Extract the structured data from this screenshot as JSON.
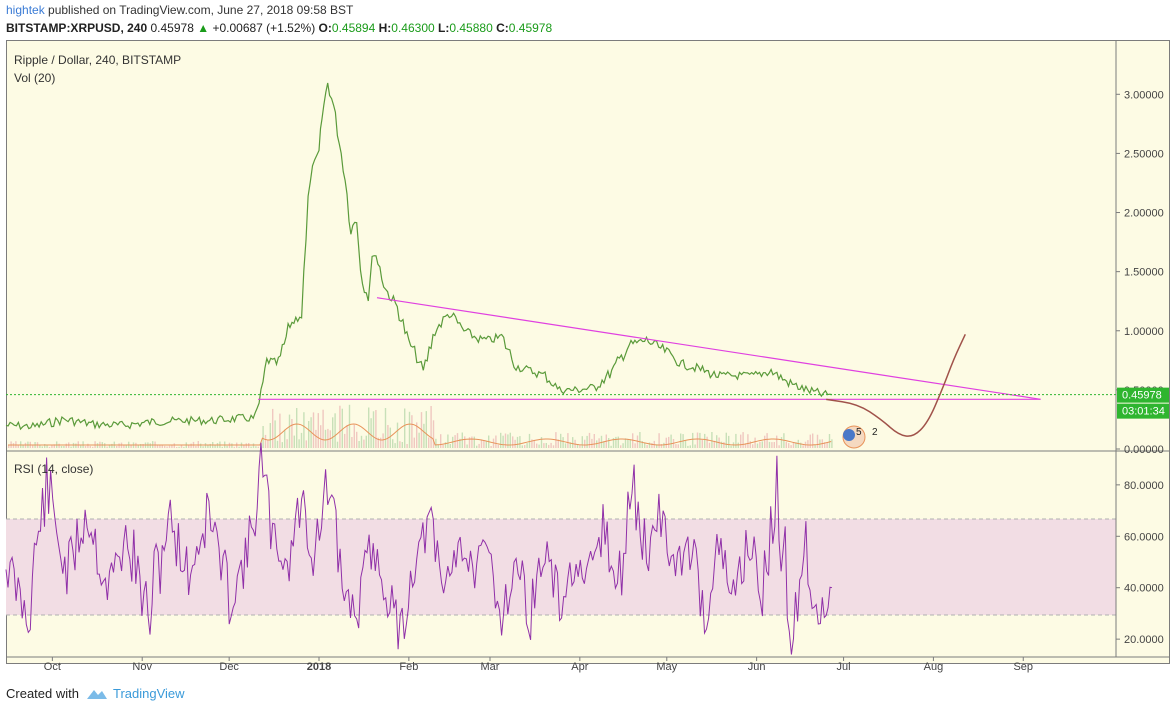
{
  "header": {
    "user": "hightek",
    "published": " published on TradingView.com, June 27, 2018 09:58 BST",
    "symbol": "BITSTAMP:XRPUSD, 240",
    "last": "0.45978",
    "change": "+0.00687 (+1.52%)",
    "o_label": "O:",
    "o": "0.45894",
    "h_label": "H:",
    "h": "0.46300",
    "l_label": "L:",
    "l": "0.45880",
    "c_label": "C:",
    "c": "0.45978"
  },
  "price_pane": {
    "title": "Ripple / Dollar, 240, BITSTAMP",
    "vol_label": "Vol (20)",
    "last_price_badge": "0.45978",
    "countdown_badge": "03:01:34",
    "event_count_1": "5",
    "event_count_2": "2"
  },
  "rsi_pane": {
    "title": "RSI (14, close)"
  },
  "footer": {
    "created_with": "Created with",
    "brand": "TradingView"
  },
  "colors": {
    "background": "#fdfbe4",
    "price_line": "#5a9a3a",
    "trendline": "#e040e0",
    "projection": "#a0524a",
    "rsi_line": "#9030a8",
    "rsi_band": "#f2dde4",
    "last_price": "#2fb52f",
    "volume_ma": "#e8935a"
  },
  "chart_data": [
    {
      "type": "line",
      "title": "Ripple / Dollar, 240, BITSTAMP",
      "series": [
        {
          "name": "",
          "x": [
            "2017-09-15",
            "2017-09-25",
            "2017-10-05",
            "2017-10-15",
            "2017-10-25",
            "2017-11-05",
            "2017-11-15",
            "2017-11-25",
            "2017-12-05",
            "2017-12-10",
            "2017-12-12",
            "2017-12-14",
            "2017-12-18",
            "2017-12-22",
            "2017-12-26",
            "2017-12-29",
            "2018-01-01",
            "2018-01-02",
            "2018-01-04",
            "2018-01-06",
            "2018-01-08",
            "2018-01-10",
            "2018-01-12",
            "2018-01-14",
            "2018-01-16",
            "2018-01-18",
            "2018-01-20",
            "2018-01-24",
            "2018-01-28",
            "2018-02-01",
            "2018-02-03",
            "2018-02-06",
            "2018-02-10",
            "2018-02-15",
            "2018-02-20",
            "2018-02-25",
            "2018-03-01",
            "2018-03-05",
            "2018-03-10",
            "2018-03-15",
            "2018-03-20",
            "2018-03-25",
            "2018-03-31",
            "2018-04-06",
            "2018-04-12",
            "2018-04-18",
            "2018-04-24",
            "2018-05-01",
            "2018-05-06",
            "2018-05-12",
            "2018-05-18",
            "2018-05-24",
            "2018-05-31",
            "2018-06-06",
            "2018-06-12",
            "2018-06-18",
            "2018-06-24",
            "2018-06-27"
          ],
          "y": [
            0.2,
            0.19,
            0.25,
            0.21,
            0.2,
            0.23,
            0.24,
            0.24,
            0.26,
            0.26,
            0.45,
            0.75,
            0.72,
            1.05,
            1.15,
            2.3,
            2.5,
            2.8,
            3.1,
            2.9,
            2.6,
            2.3,
            1.85,
            1.95,
            1.4,
            1.3,
            1.7,
            1.35,
            1.2,
            0.9,
            0.82,
            0.65,
            1.0,
            1.15,
            1.0,
            0.93,
            0.92,
            0.95,
            0.7,
            0.66,
            0.62,
            0.5,
            0.5,
            0.52,
            0.65,
            0.88,
            0.92,
            0.82,
            0.72,
            0.68,
            0.62,
            0.62,
            0.62,
            0.66,
            0.56,
            0.5,
            0.46,
            0.45978
          ]
        }
      ],
      "annotations": [
        {
          "name": "",
          "x": [
            "2018-01-21",
            "2018-09-07"
          ],
          "y": [
            1.28,
            0.42
          ]
        },
        {
          "name": "",
          "x": [
            "2017-12-11",
            "2018-09-07"
          ],
          "y": [
            0.42,
            0.42
          ]
        },
        {
          "name": "",
          "x": [
            "2018-06-25",
            "2018-07-06",
            "2018-07-14",
            "2018-07-20",
            "2018-07-25",
            "2018-07-30",
            "2018-08-04",
            "2018-08-08",
            "2018-08-12"
          ],
          "y": [
            0.42,
            0.38,
            0.25,
            0.12,
            0.1,
            0.22,
            0.5,
            0.76,
            0.97
          ]
        }
      ],
      "ylim": [
        0,
        3.4
      ],
      "y_ticks": [
        "0.00000",
        "0.50000",
        "1.00000",
        "1.50000",
        "2.00000",
        "2.50000",
        "3.00000"
      ],
      "x_ticks": [
        "Oct",
        "Nov",
        "Dec",
        "2018",
        "Feb",
        "Mar",
        "Apr",
        "May",
        "Jun",
        "Jul",
        "Aug",
        "Sep"
      ],
      "grid": false,
      "last_value": 0.45978
    },
    {
      "type": "line",
      "title": "RSI (14, close)",
      "series": [
        {
          "name": "",
          "x": [
            "2017-09-15",
            "2017-09-22",
            "2017-09-29",
            "2017-10-06",
            "2017-10-13",
            "2017-10-20",
            "2017-10-27",
            "2017-11-03",
            "2017-11-10",
            "2017-11-17",
            "2017-11-24",
            "2017-12-01",
            "2017-12-08",
            "2017-12-12",
            "2017-12-16",
            "2017-12-21",
            "2017-12-26",
            "2017-12-30",
            "2018-01-04",
            "2018-01-09",
            "2018-01-14",
            "2018-01-19",
            "2018-01-24",
            "2018-01-29",
            "2018-02-03",
            "2018-02-08",
            "2018-02-13",
            "2018-02-18",
            "2018-02-23",
            "2018-02-28",
            "2018-03-05",
            "2018-03-10",
            "2018-03-15",
            "2018-03-20",
            "2018-03-25",
            "2018-03-30",
            "2018-04-04",
            "2018-04-09",
            "2018-04-14",
            "2018-04-19",
            "2018-04-24",
            "2018-04-29",
            "2018-05-04",
            "2018-05-09",
            "2018-05-14",
            "2018-05-19",
            "2018-05-24",
            "2018-05-29",
            "2018-06-03",
            "2018-06-08",
            "2018-06-13",
            "2018-06-18",
            "2018-06-23",
            "2018-06-27"
          ],
          "y": [
            50,
            30,
            80,
            45,
            70,
            40,
            60,
            28,
            68,
            45,
            70,
            35,
            55,
            88,
            60,
            48,
            75,
            52,
            80,
            40,
            30,
            55,
            40,
            22,
            50,
            65,
            38,
            60,
            45,
            55,
            30,
            50,
            30,
            55,
            32,
            48,
            40,
            65,
            35,
            80,
            52,
            70,
            45,
            58,
            30,
            55,
            35,
            60,
            38,
            75,
            25,
            55,
            28,
            40
          ]
        }
      ],
      "bands": [
        30,
        70
      ],
      "ylim": [
        15,
        92
      ],
      "y_ticks": [
        "20.0000",
        "40.0000",
        "60.0000",
        "80.0000"
      ]
    }
  ]
}
